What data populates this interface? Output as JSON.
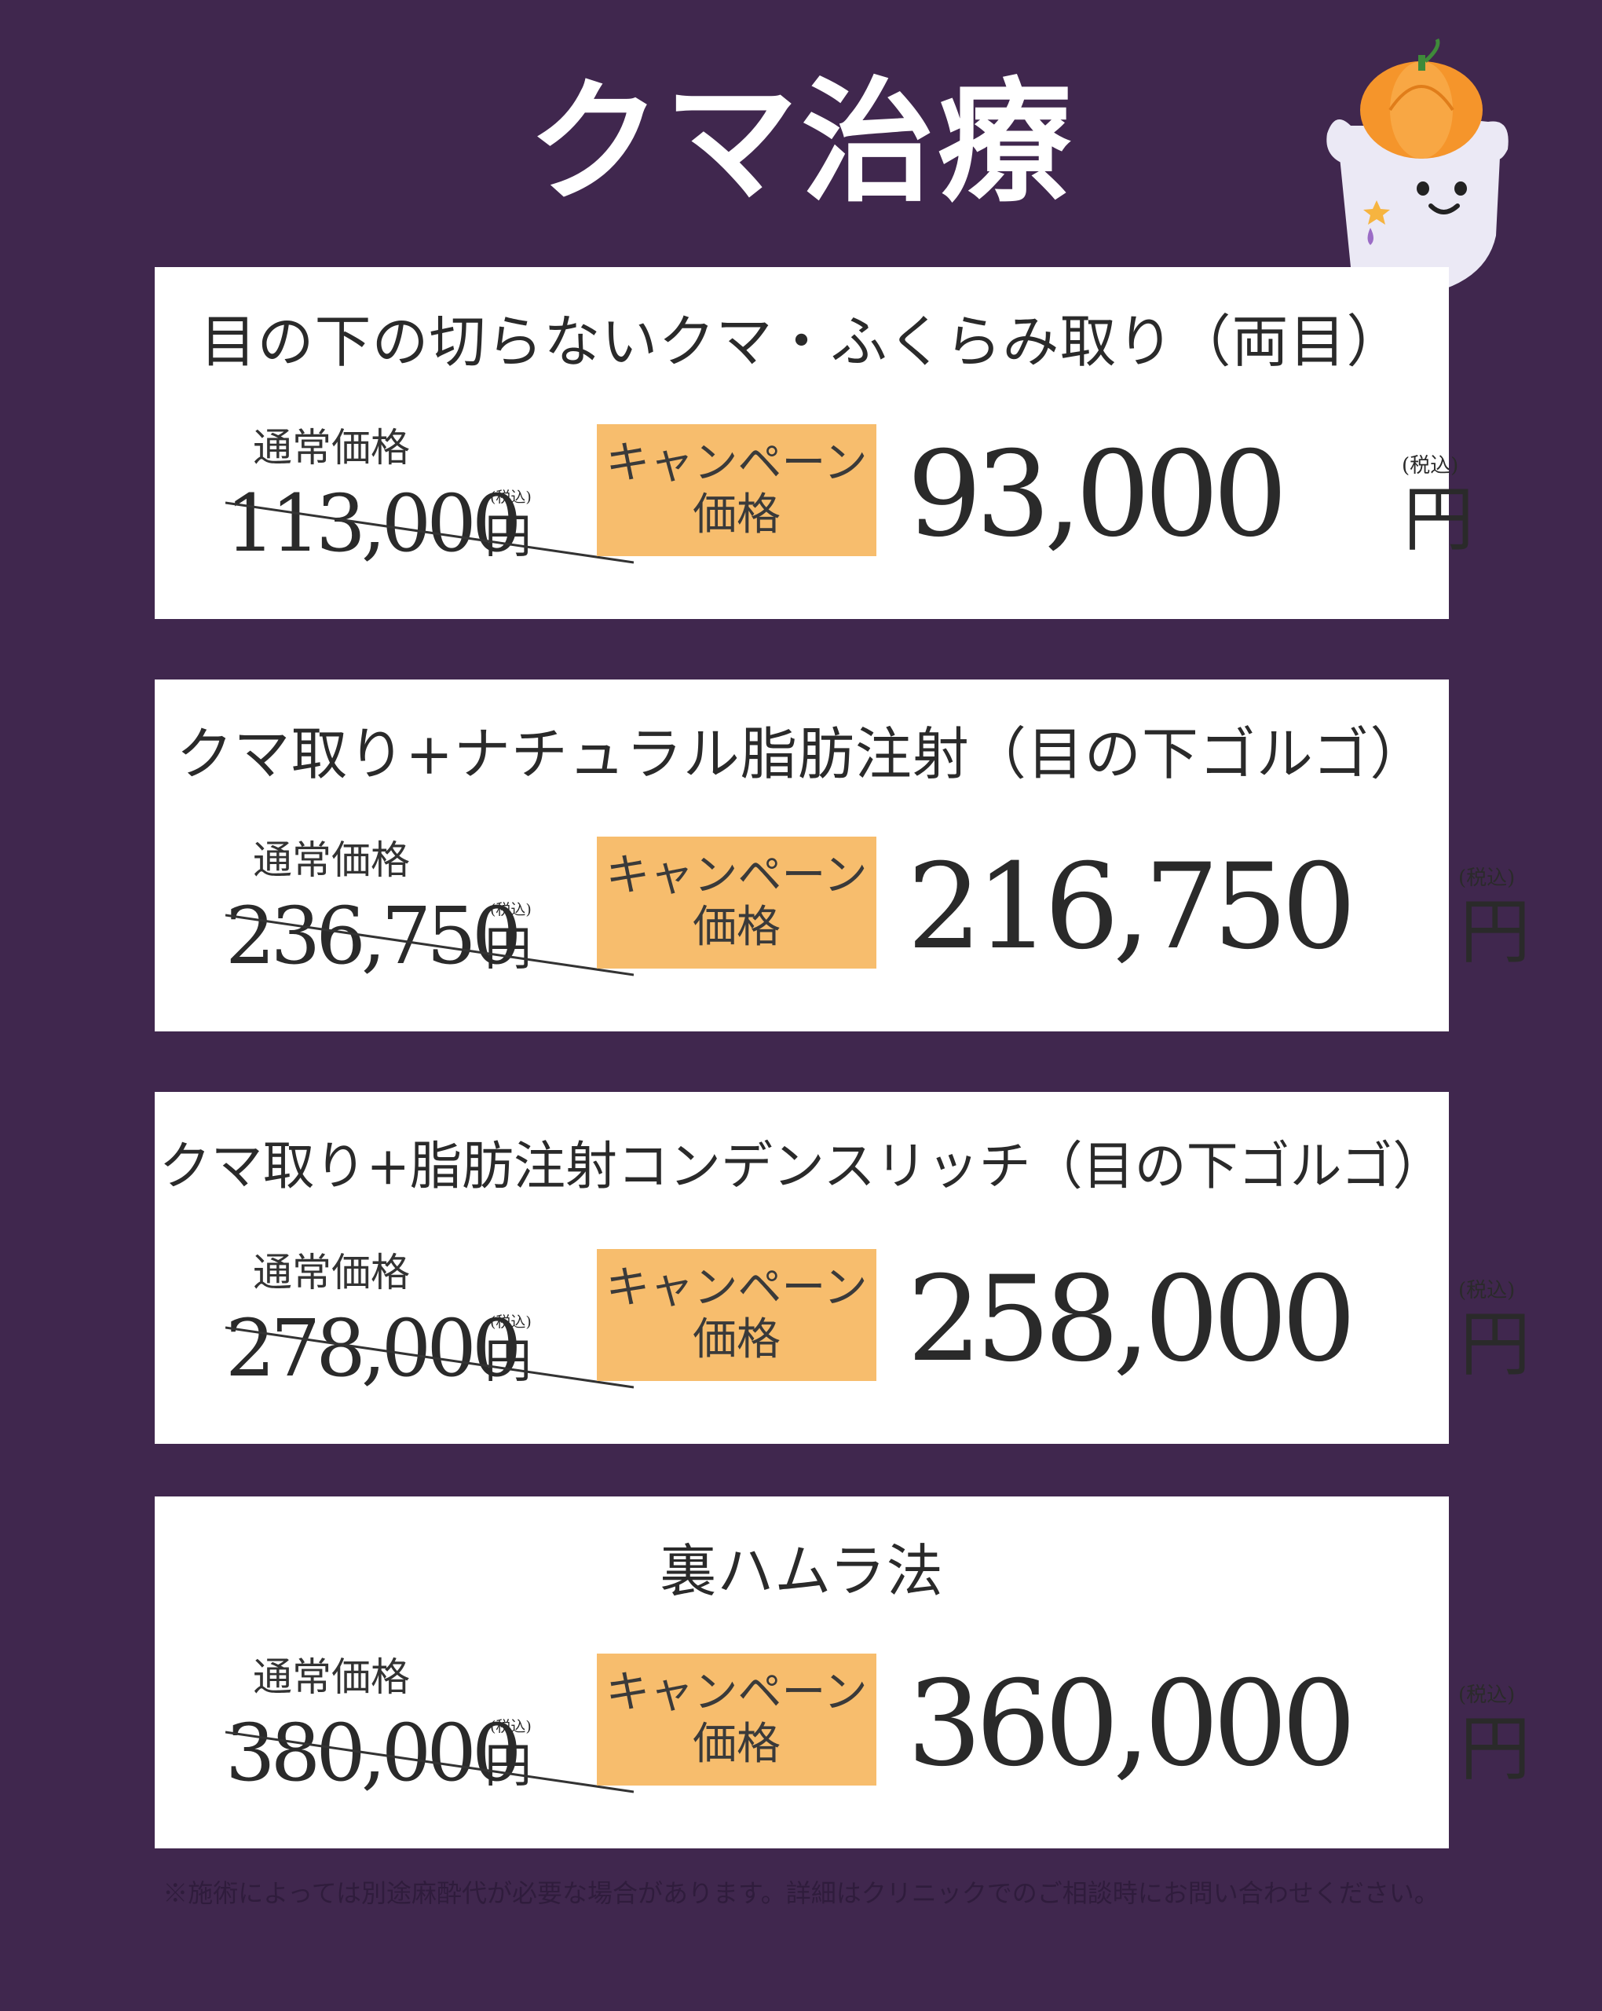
{
  "page": {
    "title": "クマ治療"
  },
  "cards": [
    {
      "title": "目の下の切らないクマ・ふくらみ取り（両目）",
      "regular_label": "通常価格",
      "regular_amount": "113,000",
      "tax_label": "(税込)",
      "yen": "円",
      "campaign_line1": "キャンペーン",
      "campaign_line2": "価格",
      "sale_amount": "93,000"
    },
    {
      "title": "クマ取り+ナチュラル脂肪注射（目の下ゴルゴ）",
      "regular_label": "通常価格",
      "regular_amount": "236,750",
      "tax_label": "(税込)",
      "yen": "円",
      "campaign_line1": "キャンペーン",
      "campaign_line2": "価格",
      "sale_amount": "216,750"
    },
    {
      "title": "クマ取り+脂肪注射コンデンスリッチ（目の下ゴルゴ）",
      "regular_label": "通常価格",
      "regular_amount": "278,000",
      "tax_label": "(税込)",
      "yen": "円",
      "campaign_line1": "キャンペーン",
      "campaign_line2": "価格",
      "sale_amount": "258,000"
    },
    {
      "title": "裏ハムラ法",
      "regular_label": "通常価格",
      "regular_amount": "380,000",
      "tax_label": "(税込)",
      "yen": "円",
      "campaign_line1": "キャンペーン",
      "campaign_line2": "価格",
      "sale_amount": "360,000"
    }
  ],
  "footnote": "※施術によっては別途麻酔代が必要な場合があります。詳細はクリニックでのご相談時にお問い合わせください。",
  "colors": {
    "background": "#40274e",
    "card": "#ffffff",
    "badge": "#f7bd6d",
    "pumpkin": "#f5952b"
  },
  "mascot_icon": "ghost-with-pumpkin-icon"
}
